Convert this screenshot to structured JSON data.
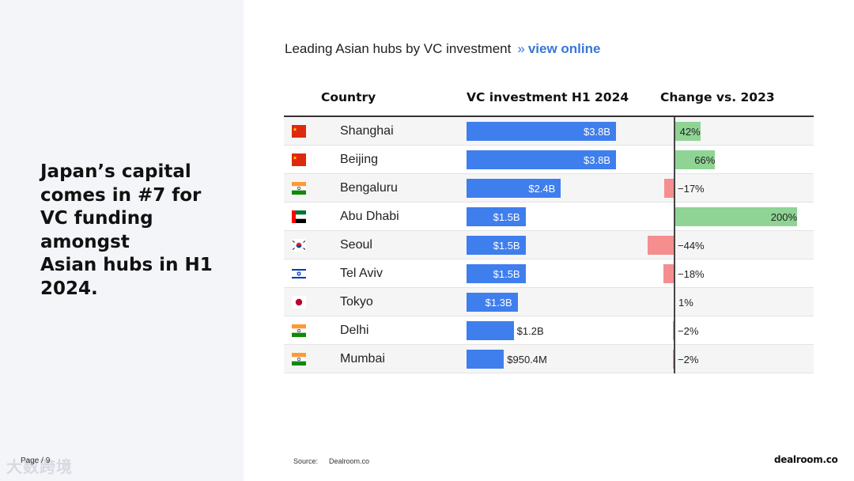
{
  "headline": "Japan’s capital\ncomes in #7 for\nVC funding\namongst\nAsian hubs in H1\n2024.",
  "page": "Page / 9",
  "watermark": "大数跨境",
  "chart_title": "Leading Asian hubs by VC investment",
  "chart_link_arrows": "»",
  "chart_link": "view online",
  "source_label": "Source:",
  "source_value": "Dealroom.co",
  "brand": "dealroom.co",
  "colors": {
    "vc_bar": "#3f7eed",
    "positive": "#8fd494",
    "negative": "#f58e8e",
    "link": "#3a76d8"
  },
  "chart_data": {
    "type": "table",
    "columns": [
      "Country",
      "VC investment H1 2024",
      "Change vs. 2023"
    ],
    "rows": [
      {
        "flag": "china-flag-icon",
        "city": "Shanghai",
        "vc_value": 3.8,
        "vc_label": "$3.8B",
        "change": 42,
        "change_label": "42%"
      },
      {
        "flag": "china-flag-icon",
        "city": "Beijing",
        "vc_value": 3.8,
        "vc_label": "$3.8B",
        "change": 66,
        "change_label": "66%"
      },
      {
        "flag": "india-flag-icon",
        "city": "Bengaluru",
        "vc_value": 2.4,
        "vc_label": "$2.4B",
        "change": -17,
        "change_label": "−17%"
      },
      {
        "flag": "uae-flag-icon",
        "city": "Abu Dhabi",
        "vc_value": 1.5,
        "vc_label": "$1.5B",
        "change": 200,
        "change_label": "200%"
      },
      {
        "flag": "south-korea-flag-icon",
        "city": "Seoul",
        "vc_value": 1.5,
        "vc_label": "$1.5B",
        "change": -44,
        "change_label": "−44%"
      },
      {
        "flag": "israel-flag-icon",
        "city": "Tel Aviv",
        "vc_value": 1.5,
        "vc_label": "$1.5B",
        "change": -18,
        "change_label": "−18%"
      },
      {
        "flag": "japan-flag-icon",
        "city": "Tokyo",
        "vc_value": 1.3,
        "vc_label": "$1.3B",
        "change": 1,
        "change_label": "1%"
      },
      {
        "flag": "india-flag-icon",
        "city": "Delhi",
        "vc_value": 1.2,
        "vc_label": "$1.2B",
        "change": -2,
        "change_label": "−2%"
      },
      {
        "flag": "india-flag-icon",
        "city": "Mumbai",
        "vc_value": 0.9504,
        "vc_label": "$950.4M",
        "change": -2,
        "change_label": "−2%"
      }
    ]
  }
}
